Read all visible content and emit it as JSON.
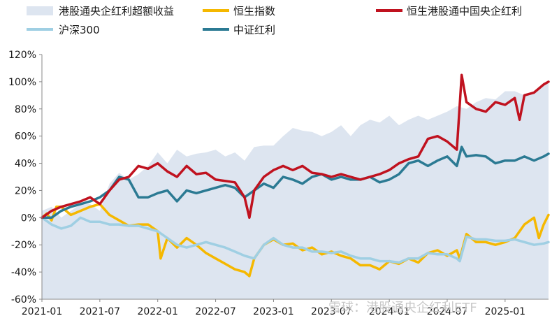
{
  "chart_data": {
    "type": "line",
    "x_tick_labels": [
      "2021-01",
      "2021-07",
      "2022-01",
      "2022-07",
      "2023-01",
      "2023-07",
      "2024-01",
      "2024-07",
      "2025-01"
    ],
    "y_tick_labels": [
      "120%",
      "100%",
      "80%",
      "60%",
      "40%",
      "20%",
      "0%",
      "-20%",
      "-40%",
      "-60%"
    ],
    "ylim": [
      -60,
      120
    ],
    "x_range_months": [
      0,
      52.5
    ],
    "watermark": "雪球：港股通央企红利ETF",
    "series": [
      {
        "name": "港股通央企红利超额收益",
        "type": "area",
        "color": "#dde5f0",
        "x": [
          0,
          1,
          2,
          3,
          4,
          5,
          6,
          7,
          8,
          9,
          10,
          11,
          12,
          13,
          14,
          15,
          16,
          17,
          18,
          19,
          20,
          21,
          22,
          23,
          24,
          25,
          26,
          27,
          28,
          29,
          30,
          31,
          32,
          33,
          34,
          35,
          36,
          37,
          38,
          39,
          40,
          41,
          42,
          43,
          44,
          45,
          46,
          47,
          48,
          49,
          50,
          51,
          52,
          52.5
        ],
        "values": [
          5,
          8,
          0,
          5,
          10,
          10,
          5,
          25,
          33,
          28,
          32,
          38,
          48,
          40,
          50,
          45,
          47,
          48,
          50,
          45,
          48,
          42,
          52,
          53,
          53,
          60,
          66,
          64,
          63,
          60,
          63,
          68,
          60,
          68,
          72,
          70,
          75,
          68,
          72,
          75,
          72,
          75,
          78,
          82,
          80,
          85,
          88,
          87,
          93,
          93,
          90,
          93,
          99,
          100
        ]
      },
      {
        "name": "恒生指数",
        "type": "line",
        "color": "#f5b800",
        "x": [
          0,
          0.5,
          1,
          1.5,
          2,
          3,
          4,
          5,
          6,
          7,
          8,
          9,
          10,
          11,
          12,
          12.3,
          13,
          14,
          15,
          16,
          17,
          18,
          19,
          20,
          21,
          21.5,
          22,
          23,
          24,
          25,
          26,
          27,
          28,
          29,
          30,
          31,
          32,
          33,
          34,
          35,
          36,
          37,
          38,
          39,
          40,
          41,
          42,
          43,
          43.3,
          44,
          45,
          46,
          47,
          48,
          49,
          50,
          51,
          51.5,
          52,
          52.5
        ],
        "values": [
          0,
          3,
          -2,
          8,
          8,
          2,
          5,
          8,
          10,
          2,
          -2,
          -6,
          -5,
          -5,
          -10,
          -30,
          -15,
          -22,
          -15,
          -20,
          -26,
          -30,
          -34,
          -38,
          -40,
          -43,
          -30,
          -20,
          -16,
          -20,
          -19,
          -24,
          -22,
          -27,
          -25,
          -28,
          -30,
          -35,
          -35,
          -38,
          -32,
          -34,
          -30,
          -33,
          -26,
          -24,
          -28,
          -24,
          -30,
          -12,
          -18,
          -18,
          -20,
          -18,
          -15,
          -5,
          0,
          -15,
          -5,
          2
        ]
      },
      {
        "name": "沪深300",
        "type": "line",
        "color": "#9fcfe3",
        "x": [
          0,
          1,
          2,
          3,
          4,
          5,
          6,
          7,
          8,
          9,
          10,
          11,
          12,
          13,
          14,
          15,
          16,
          17,
          18,
          19,
          20,
          21,
          22,
          23,
          24,
          25,
          26,
          27,
          28,
          29,
          30,
          31,
          32,
          33,
          34,
          35,
          36,
          37,
          38,
          39,
          40,
          41,
          42,
          43,
          43.3,
          44,
          45,
          46,
          47,
          48,
          49,
          50,
          51,
          52,
          52.5
        ],
        "values": [
          0,
          -5,
          -8,
          -6,
          0,
          -3,
          -3,
          -5,
          -5,
          -6,
          -6,
          -8,
          -10,
          -15,
          -20,
          -22,
          -20,
          -18,
          -20,
          -22,
          -25,
          -28,
          -30,
          -20,
          -15,
          -20,
          -22,
          -22,
          -25,
          -25,
          -26,
          -25,
          -28,
          -30,
          -30,
          -32,
          -32,
          -33,
          -30,
          -30,
          -26,
          -27,
          -27,
          -30,
          -32,
          -14,
          -16,
          -16,
          -17,
          -17,
          -16,
          -18,
          -20,
          -19,
          -18
        ]
      },
      {
        "name": "恒生港股通中国央企红利",
        "type": "line",
        "color": "#c0121f",
        "x": [
          0,
          1,
          2,
          3,
          4,
          5,
          6,
          7,
          8,
          9,
          10,
          11,
          12,
          13,
          14,
          15,
          16,
          17,
          18,
          19,
          20,
          21,
          21.5,
          22,
          23,
          24,
          25,
          26,
          27,
          28,
          29,
          30,
          31,
          32,
          33,
          34,
          35,
          36,
          37,
          38,
          39,
          40,
          41,
          42,
          43,
          43.5,
          44,
          45,
          46,
          47,
          48,
          49,
          49.5,
          50,
          51,
          52,
          52.5
        ],
        "values": [
          0,
          5,
          8,
          10,
          12,
          15,
          10,
          20,
          28,
          30,
          38,
          36,
          40,
          34,
          30,
          38,
          32,
          33,
          28,
          27,
          26,
          15,
          0,
          20,
          30,
          35,
          38,
          35,
          38,
          33,
          32,
          30,
          32,
          30,
          28,
          30,
          32,
          35,
          40,
          43,
          45,
          58,
          60,
          56,
          50,
          105,
          85,
          80,
          78,
          85,
          83,
          88,
          72,
          90,
          92,
          98,
          100
        ]
      },
      {
        "name": "中证红利",
        "type": "line",
        "color": "#2b7a93",
        "x": [
          0,
          1,
          2,
          3,
          4,
          5,
          6,
          7,
          8,
          9,
          10,
          11,
          12,
          13,
          14,
          15,
          16,
          17,
          18,
          19,
          20,
          21,
          22,
          23,
          24,
          25,
          26,
          27,
          28,
          29,
          30,
          31,
          32,
          33,
          34,
          35,
          36,
          37,
          38,
          39,
          40,
          41,
          42,
          43,
          43.5,
          44,
          45,
          46,
          47,
          48,
          49,
          50,
          51,
          52,
          52.5
        ],
        "values": [
          0,
          0,
          5,
          8,
          10,
          12,
          15,
          20,
          30,
          28,
          15,
          15,
          18,
          20,
          12,
          20,
          18,
          20,
          22,
          24,
          22,
          15,
          20,
          25,
          22,
          30,
          28,
          25,
          30,
          32,
          28,
          30,
          28,
          28,
          30,
          26,
          28,
          32,
          40,
          42,
          38,
          42,
          45,
          38,
          52,
          45,
          46,
          45,
          40,
          42,
          42,
          45,
          42,
          45,
          47
        ]
      }
    ]
  }
}
